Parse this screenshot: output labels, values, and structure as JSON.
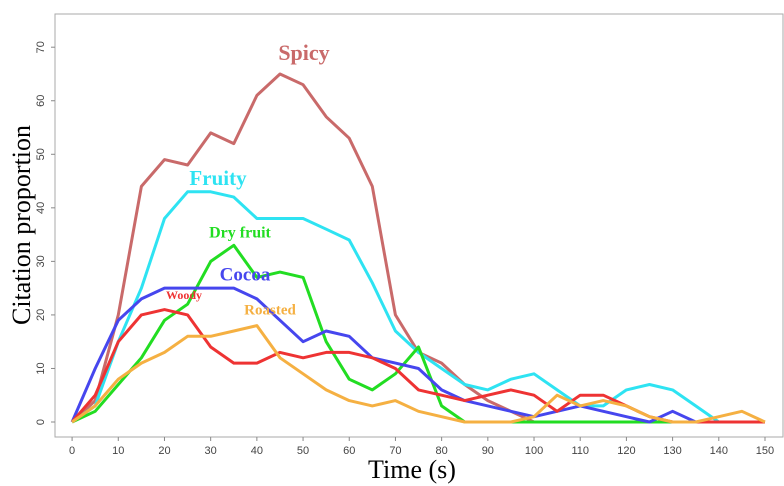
{
  "chart_data": {
    "type": "line",
    "xlabel": "Time (s)",
    "ylabel": "Citation proportion",
    "x": [
      0,
      5,
      10,
      15,
      20,
      25,
      30,
      35,
      40,
      45,
      50,
      55,
      60,
      65,
      70,
      75,
      80,
      85,
      90,
      95,
      100,
      105,
      110,
      115,
      120,
      125,
      130,
      135,
      140,
      145,
      150
    ],
    "series": [
      {
        "name": "Spicy",
        "color": "#c96a6a",
        "values": [
          0,
          4,
          20,
          44,
          49,
          48,
          54,
          52,
          61,
          65,
          63,
          57,
          53,
          44,
          20,
          13,
          11,
          7,
          4,
          2,
          0,
          0,
          0,
          0,
          0,
          0,
          0,
          0,
          0,
          0,
          0
        ]
      },
      {
        "name": "Fruity",
        "color": "#2ee3f2",
        "values": [
          0,
          3,
          15,
          25,
          38,
          43,
          43,
          42,
          38,
          38,
          38,
          36,
          34,
          26,
          17,
          13,
          10,
          7,
          6,
          8,
          9,
          6,
          3,
          3,
          6,
          7,
          6,
          3,
          0,
          0,
          0
        ]
      },
      {
        "name": "Dry fruit",
        "color": "#22dd22",
        "values": [
          0,
          2,
          7,
          12,
          19,
          22,
          30,
          33,
          27,
          28,
          27,
          15,
          8,
          6,
          9,
          14,
          3,
          0,
          0,
          0,
          0,
          0,
          0,
          0,
          0,
          0,
          0,
          0,
          0,
          0,
          0
        ]
      },
      {
        "name": "Cocoa",
        "color": "#4646ee",
        "values": [
          0,
          10,
          19,
          23,
          25,
          25,
          25,
          25,
          23,
          19,
          15,
          17,
          16,
          12,
          11,
          10,
          6,
          4,
          3,
          2,
          1,
          2,
          3,
          2,
          1,
          0,
          2,
          0,
          0,
          0,
          0
        ]
      },
      {
        "name": "Woody",
        "color": "#ee3333",
        "values": [
          0,
          5,
          15,
          20,
          21,
          20,
          14,
          11,
          11,
          13,
          12,
          13,
          13,
          12,
          10,
          6,
          5,
          4,
          5,
          6,
          5,
          2,
          5,
          5,
          3,
          1,
          0,
          0,
          0,
          0,
          0
        ]
      },
      {
        "name": "Roasted",
        "color": "#f5b042",
        "values": [
          0,
          3,
          8,
          11,
          13,
          16,
          16,
          17,
          18,
          12,
          9,
          6,
          4,
          3,
          4,
          2,
          1,
          0,
          0,
          0,
          1,
          5,
          3,
          4,
          3,
          1,
          0,
          0,
          1,
          2,
          0
        ]
      }
    ],
    "xlim": [
      -3.7,
      153.9
    ],
    "ylim": [
      -2.8,
      76.2
    ],
    "xticks": [
      0,
      10,
      20,
      30,
      40,
      50,
      60,
      70,
      80,
      90,
      100,
      110,
      120,
      130,
      140,
      150
    ],
    "yticks": [
      0,
      10,
      20,
      30,
      40,
      50,
      60,
      70
    ]
  }
}
